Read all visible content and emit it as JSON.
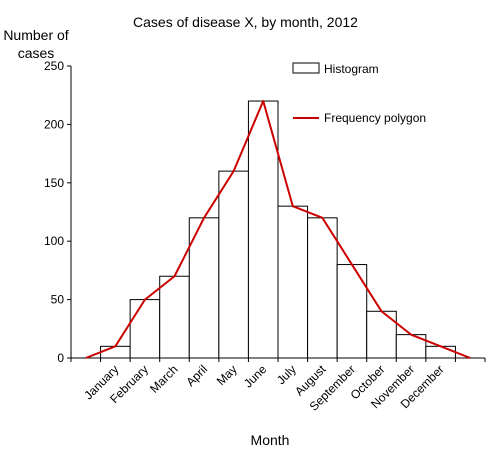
{
  "chart_data": {
    "type": "bar",
    "title": "Cases of disease X,  by month, 2012",
    "xlabel": "Month",
    "ylabel_lines": [
      "Number of",
      "cases"
    ],
    "categories": [
      "January",
      "February",
      "March",
      "April",
      "May",
      "June",
      "July",
      "August",
      "September",
      "October",
      "November",
      "December"
    ],
    "ylim": [
      0,
      250
    ],
    "yticks": [
      "0",
      "50",
      "100",
      "150",
      "200",
      "250"
    ],
    "series": [
      {
        "name": "Histogram",
        "type": "bar",
        "values": [
          10,
          50,
          70,
          120,
          160,
          220,
          130,
          120,
          80,
          40,
          20,
          10
        ],
        "fill": "#ffffff",
        "stroke": "#000000"
      },
      {
        "name": "Frequency polygon",
        "type": "line",
        "x": [
          "",
          "January",
          "February",
          "March",
          "April",
          "May",
          "June",
          "July",
          "August",
          "September",
          "October",
          "November",
          "December",
          ""
        ],
        "values": [
          0,
          10,
          50,
          70,
          120,
          160,
          220,
          130,
          120,
          80,
          40,
          20,
          10,
          0
        ],
        "color": "#cc0000"
      }
    ],
    "legend": "top-right",
    "grid": false
  }
}
